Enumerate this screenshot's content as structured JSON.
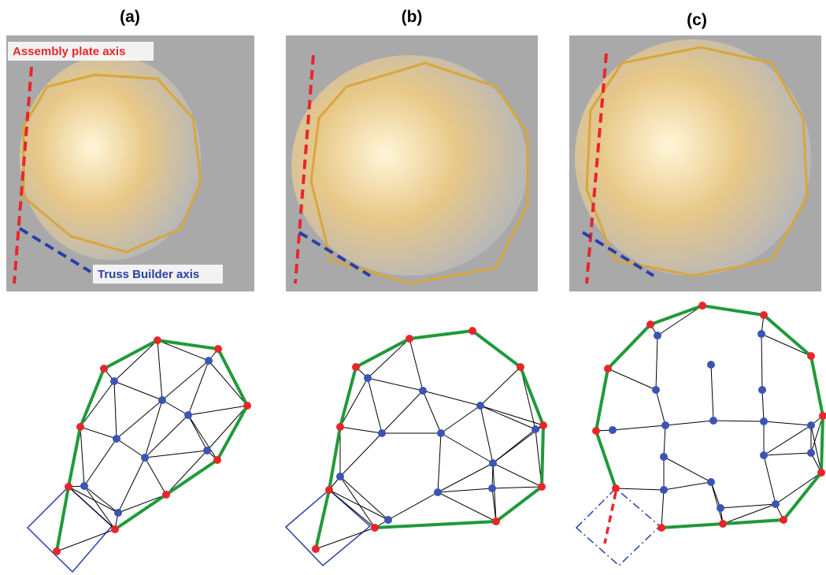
{
  "panels": [
    {
      "label": "(a)"
    },
    {
      "label": "(b)"
    },
    {
      "label": "(c)"
    }
  ],
  "annotations": {
    "assembly_plate_axis": "Assembly plate axis",
    "truss_builder_axis": "Truss Builder axis"
  }
}
